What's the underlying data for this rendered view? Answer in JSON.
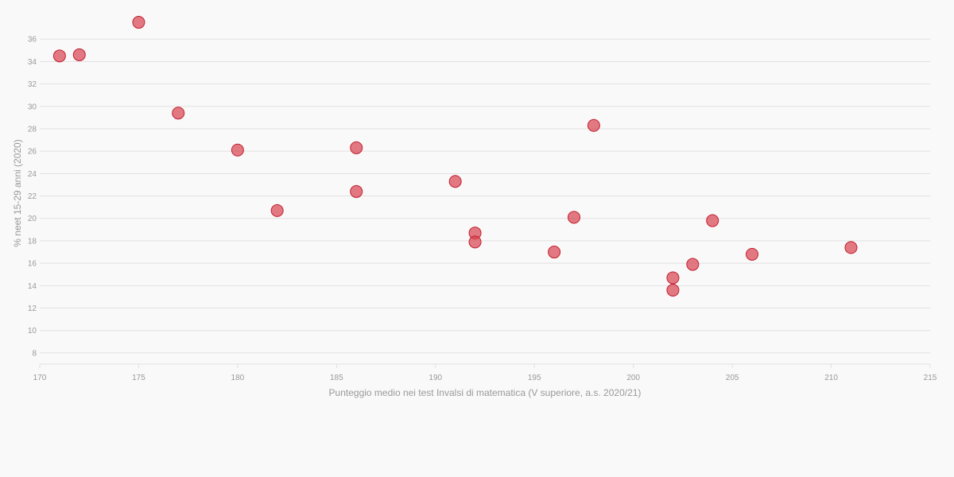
{
  "chart_data": {
    "type": "scatter",
    "xlabel": "Punteggio medio nei test Invalsi di matematica (V superiore, a.s. 2020/21)",
    "ylabel": "% neet 15-29 anni (2020)",
    "xlim": [
      170,
      215
    ],
    "ylim": [
      7,
      38
    ],
    "x_ticks": [
      170,
      175,
      180,
      185,
      190,
      195,
      200,
      205,
      210,
      215
    ],
    "y_ticks": [
      8,
      10,
      12,
      14,
      16,
      18,
      20,
      22,
      24,
      26,
      28,
      30,
      32,
      34,
      36
    ],
    "grid": true,
    "colors": {
      "point": "#d9424f",
      "point_stroke": "#c0202f",
      "grid": "#e1e1e1",
      "text": "#999999"
    },
    "points": [
      {
        "x": 171,
        "y": 34.5
      },
      {
        "x": 172,
        "y": 34.6
      },
      {
        "x": 175,
        "y": 37.5
      },
      {
        "x": 177,
        "y": 29.4
      },
      {
        "x": 180,
        "y": 26.1
      },
      {
        "x": 182,
        "y": 20.7
      },
      {
        "x": 186,
        "y": 26.3
      },
      {
        "x": 186,
        "y": 22.4
      },
      {
        "x": 191,
        "y": 23.3
      },
      {
        "x": 192,
        "y": 18.7
      },
      {
        "x": 192,
        "y": 17.9
      },
      {
        "x": 196,
        "y": 17.0
      },
      {
        "x": 197,
        "y": 20.1
      },
      {
        "x": 198,
        "y": 28.3
      },
      {
        "x": 202,
        "y": 14.7
      },
      {
        "x": 202,
        "y": 13.6
      },
      {
        "x": 203,
        "y": 15.9
      },
      {
        "x": 204,
        "y": 19.8
      },
      {
        "x": 206,
        "y": 16.8
      },
      {
        "x": 211,
        "y": 17.4
      }
    ]
  }
}
